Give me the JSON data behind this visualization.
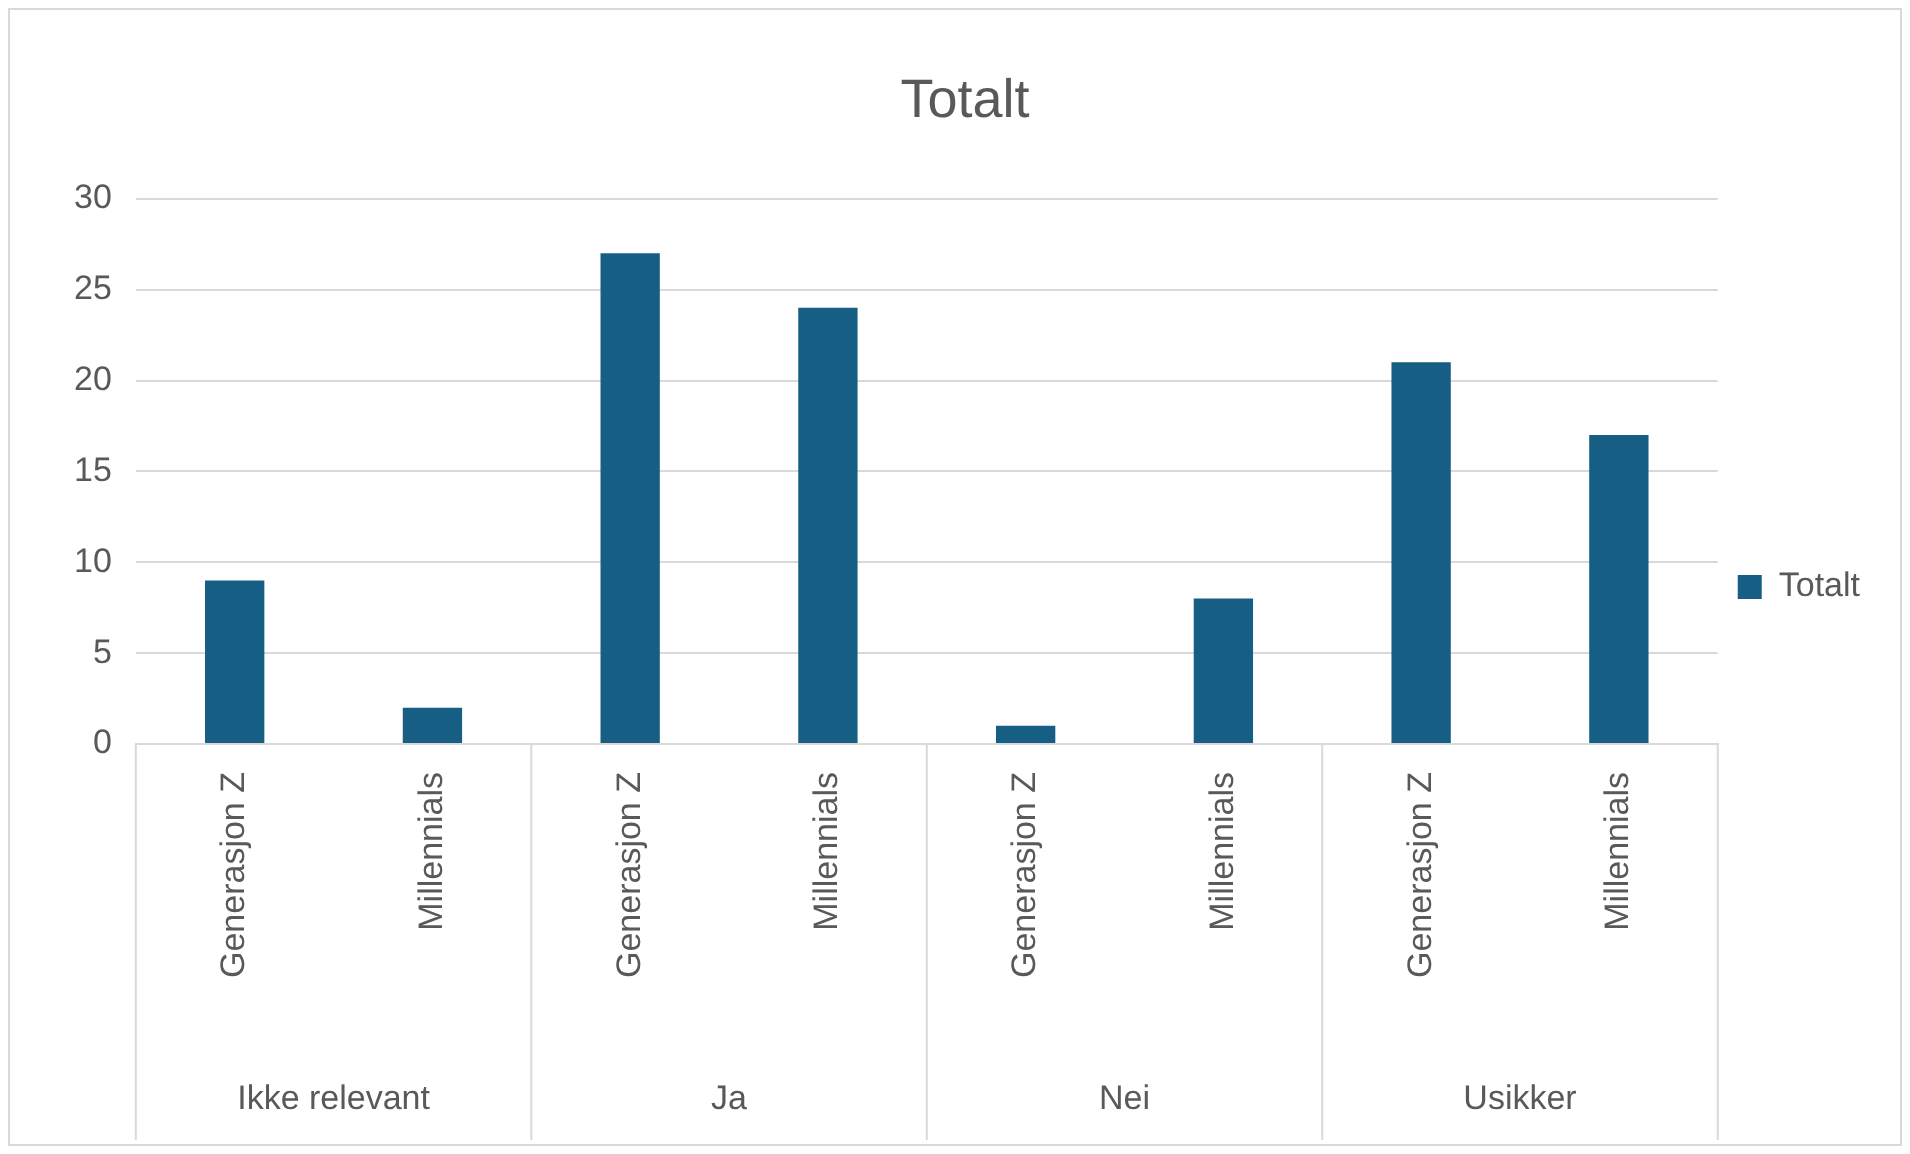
{
  "chart_data": {
    "type": "bar",
    "title": "Totalt",
    "categories": [
      "Generasjon Z",
      "Millennials",
      "Generasjon Z",
      "Millennials",
      "Generasjon Z",
      "Millennials",
      "Generasjon Z",
      "Millennials"
    ],
    "annotations": [
      "Ikke relevant",
      "Ja",
      "Nei",
      "Usikker"
    ],
    "series": [
      {
        "name": "Totalt",
        "color": "#165e83",
        "values": [
          9,
          2,
          27,
          24,
          1,
          8,
          21,
          17
        ]
      }
    ],
    "ylim": [
      0,
      30
    ],
    "yticks": [
      0,
      5,
      10,
      15,
      20,
      25,
      30
    ],
    "grid": "y",
    "legend": "right"
  }
}
